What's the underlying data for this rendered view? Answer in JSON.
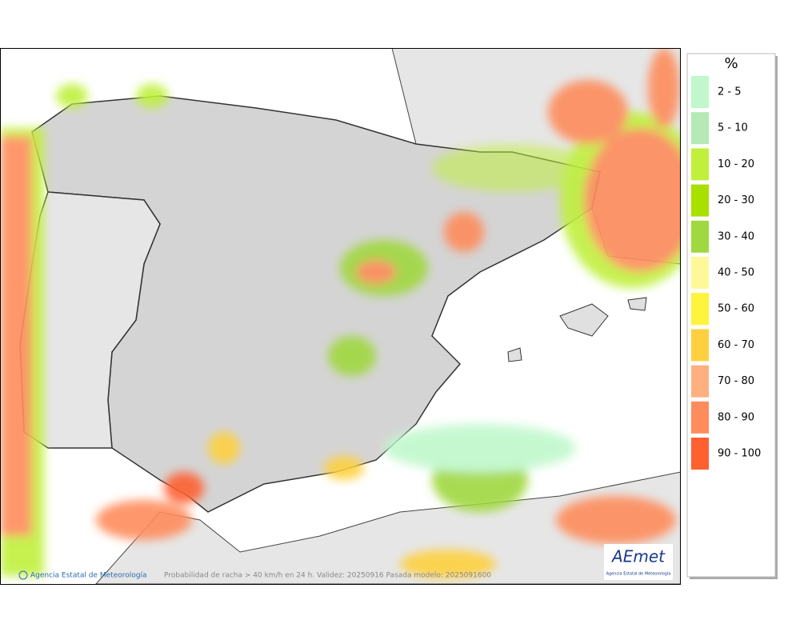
{
  "legend": {
    "title": "%",
    "items": [
      {
        "label": "2 - 5",
        "color": "#c0f8cc"
      },
      {
        "label": "5 - 10",
        "color": "#b4eab4"
      },
      {
        "label": "10 - 20",
        "color": "#c0f03c"
      },
      {
        "label": "20 - 30",
        "color": "#a8e000"
      },
      {
        "label": "30 - 40",
        "color": "#a0d840"
      },
      {
        "label": "40 - 50",
        "color": "#fef898"
      },
      {
        "label": "50 - 60",
        "color": "#fef43c"
      },
      {
        "label": "60 - 70",
        "color": "#fed040"
      },
      {
        "label": "70 - 80",
        "color": "#feb080"
      },
      {
        "label": "80 - 90",
        "color": "#fe8c5c"
      },
      {
        "label": "90 - 100",
        "color": "#fe6030"
      }
    ]
  },
  "footer": {
    "credit": "Agencia Estatal de Meteorología",
    "caption": "Probabilidad de racha > 40 km/h en 24 h. Validez: 20250916 Pasada modelo: 2025091600"
  },
  "logo": {
    "name": "AEmet",
    "subtitle": "Agencia Estatal de Meteorología"
  }
}
